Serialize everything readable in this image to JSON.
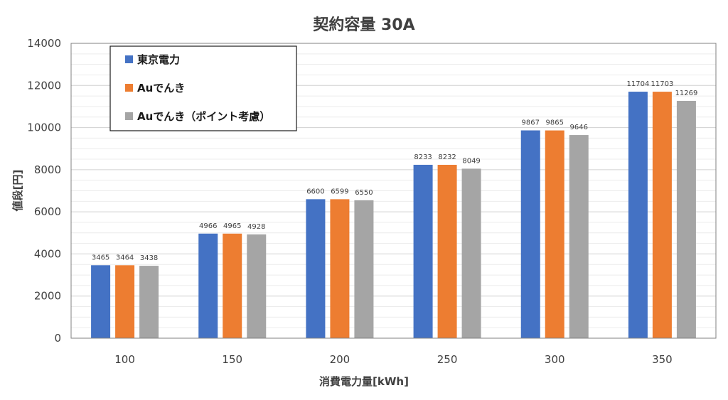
{
  "chart_data": {
    "type": "bar",
    "title": "契約容量 30A",
    "xlabel": "消費電力量[kWh]",
    "ylabel": "値段[円]",
    "categories": [
      "100",
      "150",
      "200",
      "250",
      "300",
      "350"
    ],
    "ylim": [
      0,
      14000
    ],
    "yticks": [
      0,
      2000,
      4000,
      6000,
      8000,
      10000,
      12000,
      14000
    ],
    "grid": true,
    "legend_position": "top-left",
    "series": [
      {
        "name": "東京電力",
        "color": "#4472C4",
        "values": [
          3465,
          4966,
          6600,
          8233,
          9867,
          11704
        ]
      },
      {
        "name": "Auでんき",
        "color": "#ED7D31",
        "values": [
          3464,
          4965,
          6599,
          8232,
          9865,
          11703
        ]
      },
      {
        "name": "Auでんき（ポイント考慮）",
        "color": "#A5A5A5",
        "values": [
          3438,
          4928,
          6550,
          8049,
          9646,
          11269
        ]
      }
    ]
  }
}
